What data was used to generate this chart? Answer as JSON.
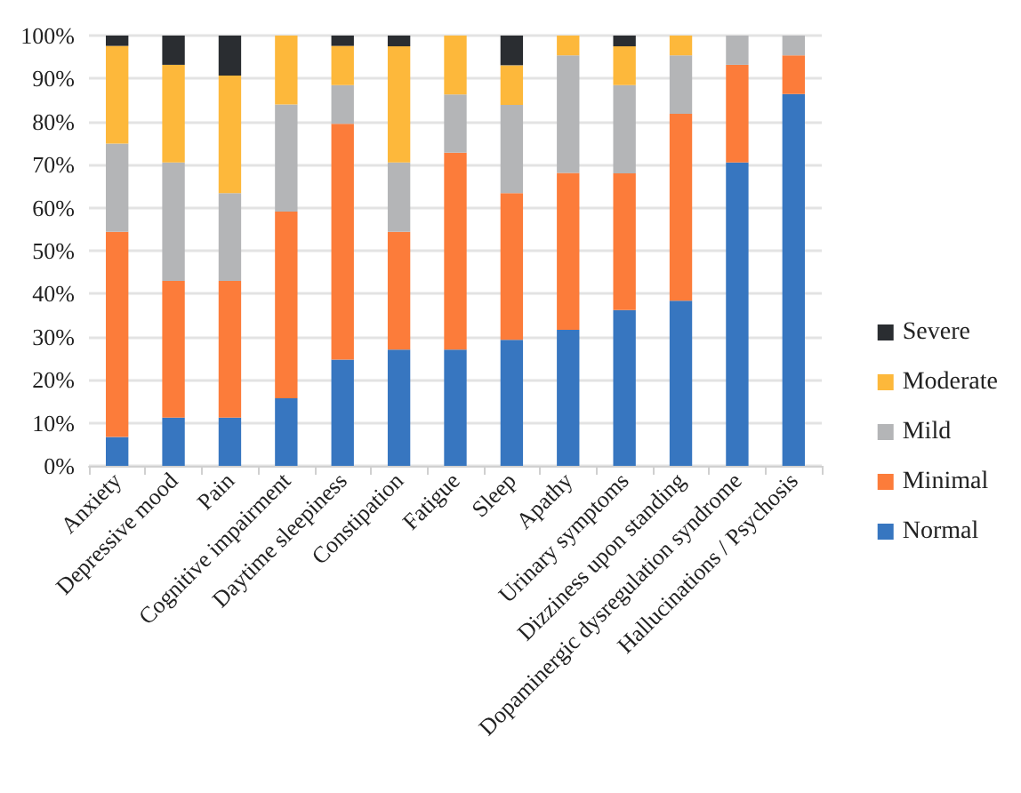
{
  "chart_data": {
    "type": "bar",
    "stacked": true,
    "categories": [
      "Anxiety",
      "Depressive mood",
      "Pain",
      "Cognitive impairment",
      "Daytime sleepiness",
      "Constipation",
      "Fatigue",
      "Sleep",
      "Apathy",
      "Urinary symptoms",
      "Dizziness upon standing",
      "Dopaminergic dysregulation syndrome",
      "Hallucinations / Psychosis"
    ],
    "series": [
      {
        "name": "Normal",
        "color": "#3776c0",
        "values": [
          6.7,
          11.2,
          11.2,
          15.7,
          24.7,
          27.0,
          27.0,
          29.3,
          31.6,
          36.2,
          38.4,
          70.5,
          86.4
        ]
      },
      {
        "name": "Minimal",
        "color": "#fc7c3a",
        "values": [
          47.7,
          31.8,
          31.8,
          43.4,
          54.8,
          27.4,
          45.8,
          34.1,
          36.5,
          31.8,
          43.4,
          22.7,
          9.0
        ]
      },
      {
        "name": "Mild",
        "color": "#b4b5b7",
        "values": [
          20.5,
          27.5,
          20.4,
          24.9,
          9.0,
          16.1,
          13.5,
          20.5,
          27.3,
          20.5,
          13.6,
          6.8,
          4.6
        ]
      },
      {
        "name": "Moderate",
        "color": "#fdb83b",
        "values": [
          22.7,
          22.7,
          27.3,
          16.0,
          9.1,
          27.0,
          13.7,
          9.2,
          4.6,
          9.0,
          4.6,
          0,
          0
        ]
      },
      {
        "name": "Severe",
        "color": "#2a2d31",
        "values": [
          2.4,
          6.8,
          9.3,
          0,
          2.4,
          2.5,
          0,
          6.9,
          0,
          2.5,
          0,
          0,
          0
        ]
      }
    ],
    "ylim": [
      0,
      100
    ],
    "yticks": [
      {
        "value": 0,
        "label": "0%"
      },
      {
        "value": 10,
        "label": "10%"
      },
      {
        "value": 20,
        "label": "20%"
      },
      {
        "value": 30,
        "label": "30%"
      },
      {
        "value": 40,
        "label": "40%"
      },
      {
        "value": 50,
        "label": "50%"
      },
      {
        "value": 60,
        "label": "60%"
      },
      {
        "value": 70,
        "label": "70%"
      },
      {
        "value": 80,
        "label": "80%"
      },
      {
        "value": 90,
        "label": "90%"
      },
      {
        "value": 100,
        "label": "100%"
      }
    ],
    "grid": "y",
    "legend": "right"
  }
}
